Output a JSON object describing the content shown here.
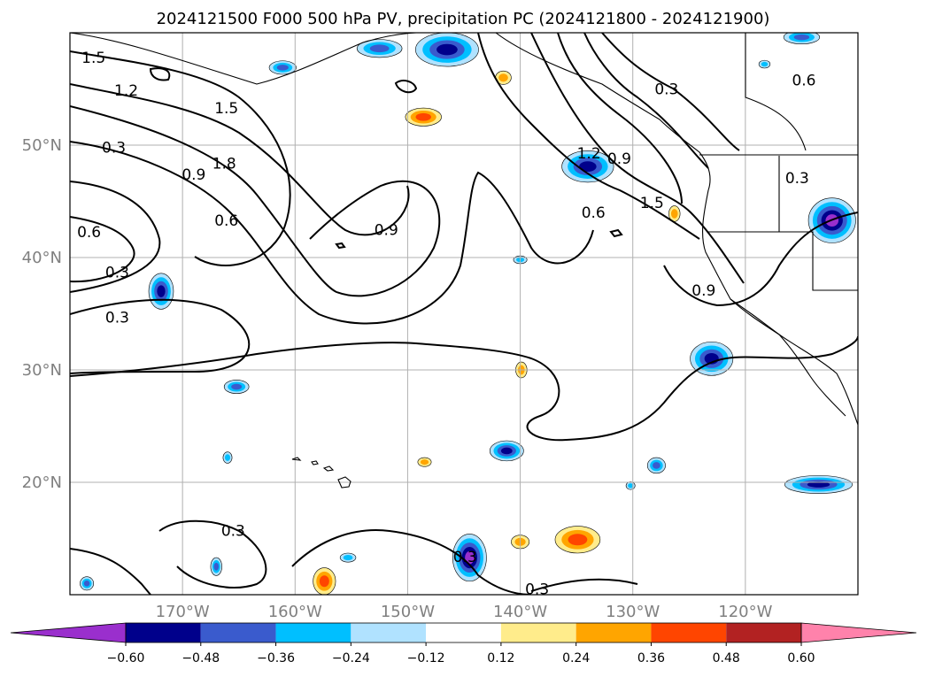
{
  "title": "2024121500 F000 500 hPa PV, precipitation PC (2024121800 - 2024121900)",
  "chart_data": {
    "type": "map",
    "projection": "PlateCarree",
    "lon_range": [
      -180,
      -110
    ],
    "lat_range": [
      10,
      60
    ],
    "gridlines": true,
    "x_ticks": [
      {
        "value": -170,
        "label": "170°W"
      },
      {
        "value": -160,
        "label": "160°W"
      },
      {
        "value": -150,
        "label": "150°W"
      },
      {
        "value": -140,
        "label": "140°W"
      },
      {
        "value": -130,
        "label": "130°W"
      },
      {
        "value": -120,
        "label": "120°W"
      }
    ],
    "y_ticks": [
      {
        "value": 20,
        "label": "20°N"
      },
      {
        "value": 30,
        "label": "30°N"
      },
      {
        "value": 40,
        "label": "40°N"
      },
      {
        "value": 50,
        "label": "50°N"
      }
    ],
    "contour_field": "500 hPa PV",
    "contour_labels": [
      {
        "text": "1.5",
        "lon": -177.9,
        "lat": 57.8
      },
      {
        "text": "1.2",
        "lon": -175.0,
        "lat": 54.9
      },
      {
        "text": "1.5",
        "lon": -166.1,
        "lat": 53.3
      },
      {
        "text": "1.8",
        "lon": -166.3,
        "lat": 48.4
      },
      {
        "text": "0.3",
        "lon": -176.1,
        "lat": 49.8
      },
      {
        "text": "0.9",
        "lon": -169.0,
        "lat": 47.4
      },
      {
        "text": "0.6",
        "lon": -166.1,
        "lat": 43.3
      },
      {
        "text": "0.6",
        "lon": -178.3,
        "lat": 42.3
      },
      {
        "text": "0.3",
        "lon": -175.8,
        "lat": 38.7
      },
      {
        "text": "0.3",
        "lon": -175.8,
        "lat": 34.7
      },
      {
        "text": "0.9",
        "lon": -151.9,
        "lat": 42.5
      },
      {
        "text": "0.3",
        "lon": -127.0,
        "lat": 55.0
      },
      {
        "text": "1.2",
        "lon": -133.9,
        "lat": 49.3
      },
      {
        "text": "0.9",
        "lon": -131.2,
        "lat": 48.8
      },
      {
        "text": "1.5",
        "lon": -128.3,
        "lat": 44.9
      },
      {
        "text": "0.6",
        "lon": -133.5,
        "lat": 44.0
      },
      {
        "text": "0.9",
        "lon": -123.7,
        "lat": 37.1
      },
      {
        "text": "0.3",
        "lon": -115.4,
        "lat": 47.1
      },
      {
        "text": "0.6",
        "lon": -114.8,
        "lat": 55.8
      },
      {
        "text": "0.3",
        "lon": -165.5,
        "lat": 15.7
      },
      {
        "text": "0.3",
        "lon": -144.9,
        "lat": 13.4
      },
      {
        "text": "0.3",
        "lon": -138.5,
        "lat": 10.5
      }
    ],
    "fill_field": "precipitation PC",
    "colorbar": {
      "levels": [
        -0.6,
        -0.48,
        -0.36,
        -0.24,
        -0.12,
        0.12,
        0.24,
        0.36,
        0.48,
        0.6
      ],
      "tick_labels": [
        "−0.60",
        "−0.48",
        "−0.36",
        "−0.24",
        "−0.12",
        "0.12",
        "0.24",
        "0.36",
        "0.48",
        "0.60"
      ],
      "colors": [
        "#9a2fcd",
        "#00008b",
        "#3a5bcd",
        "#00bfff",
        "#b0e2ff",
        "#ffffff",
        "#ffec8b",
        "#ffa500",
        "#ff4500",
        "#b22222",
        "#ff82ab"
      ],
      "extend": "both"
    },
    "precip_blobs": [
      {
        "lon": -171.9,
        "lat": 37.0,
        "rx": 1.1,
        "ry": 1.6,
        "value": -0.5
      },
      {
        "lon": -165.2,
        "lat": 28.5,
        "rx": 1.1,
        "ry": 0.6,
        "value": -0.45
      },
      {
        "lon": -166.0,
        "lat": 22.2,
        "rx": 0.4,
        "ry": 0.5,
        "value": -0.35
      },
      {
        "lon": -146.5,
        "lat": 58.5,
        "rx": 2.8,
        "ry": 1.5,
        "value": -0.5
      },
      {
        "lon": -152.5,
        "lat": 58.6,
        "rx": 2.0,
        "ry": 0.8,
        "value": -0.45
      },
      {
        "lon": -161.1,
        "lat": 56.9,
        "rx": 1.2,
        "ry": 0.6,
        "value": -0.4
      },
      {
        "lon": -134.0,
        "lat": 48.1,
        "rx": 2.3,
        "ry": 1.4,
        "value": -0.55
      },
      {
        "lon": -112.3,
        "lat": 43.3,
        "rx": 2.1,
        "ry": 2.0,
        "value": -0.6
      },
      {
        "lon": -115.0,
        "lat": 59.6,
        "rx": 1.6,
        "ry": 0.6,
        "value": -0.4
      },
      {
        "lon": -123.0,
        "lat": 31.0,
        "rx": 1.9,
        "ry": 1.5,
        "value": -0.55
      },
      {
        "lon": -141.2,
        "lat": 22.8,
        "rx": 1.5,
        "ry": 0.9,
        "value": -0.5
      },
      {
        "lon": -127.9,
        "lat": 21.5,
        "rx": 0.8,
        "ry": 0.7,
        "value": -0.4
      },
      {
        "lon": -113.5,
        "lat": 19.8,
        "rx": 3.0,
        "ry": 0.8,
        "value": -0.5
      },
      {
        "lon": -130.2,
        "lat": 19.7,
        "rx": 0.4,
        "ry": 0.35,
        "value": -0.35
      },
      {
        "lon": -144.5,
        "lat": 13.3,
        "rx": 1.5,
        "ry": 2.1,
        "value": -0.6
      },
      {
        "lon": -140.0,
        "lat": 39.8,
        "rx": 0.6,
        "ry": 0.35,
        "value": -0.3
      },
      {
        "lon": -178.5,
        "lat": 11.0,
        "rx": 0.6,
        "ry": 0.6,
        "value": -0.4
      },
      {
        "lon": -167.0,
        "lat": 12.5,
        "rx": 0.5,
        "ry": 0.8,
        "value": -0.4
      },
      {
        "lon": -155.3,
        "lat": 13.3,
        "rx": 0.7,
        "ry": 0.4,
        "value": -0.35
      },
      {
        "lon": -118.3,
        "lat": 57.2,
        "rx": 0.5,
        "ry": 0.35,
        "value": -0.3
      },
      {
        "lon": -148.6,
        "lat": 52.5,
        "rx": 1.6,
        "ry": 0.8,
        "value": 0.36
      },
      {
        "lon": -134.9,
        "lat": 14.9,
        "rx": 2.0,
        "ry": 1.2,
        "value": 0.42
      },
      {
        "lon": -157.4,
        "lat": 11.2,
        "rx": 1.0,
        "ry": 1.2,
        "value": 0.4
      },
      {
        "lon": -140.0,
        "lat": 14.7,
        "rx": 0.8,
        "ry": 0.6,
        "value": 0.3
      },
      {
        "lon": -139.9,
        "lat": 30.0,
        "rx": 0.5,
        "ry": 0.7,
        "value": 0.32
      },
      {
        "lon": -148.5,
        "lat": 21.8,
        "rx": 0.6,
        "ry": 0.4,
        "value": 0.3
      },
      {
        "lon": -126.3,
        "lat": 43.9,
        "rx": 0.5,
        "ry": 0.7,
        "value": 0.33
      },
      {
        "lon": -141.5,
        "lat": 56.0,
        "rx": 0.7,
        "ry": 0.6,
        "value": 0.32
      }
    ]
  }
}
